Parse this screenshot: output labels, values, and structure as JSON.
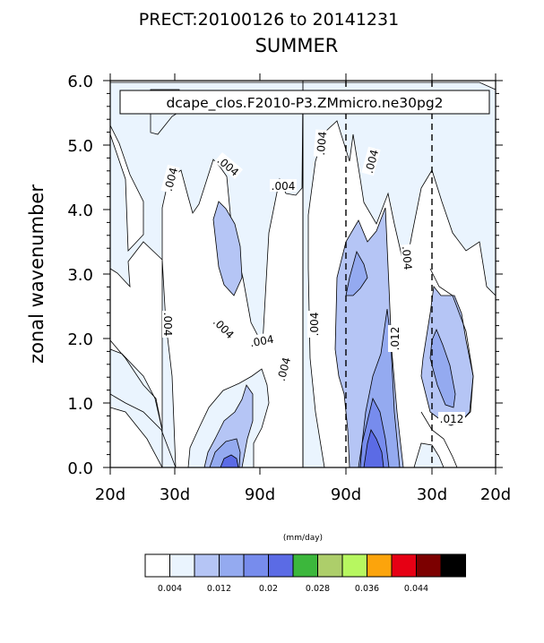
{
  "chart_data": {
    "type": "contour",
    "title": "PRECT:20100126 to 20141231",
    "subtitle": "SUMMER",
    "case_label": "dcape_clos.F2010-P3.ZMmicro.ne30pg2",
    "ylabel": "zonal wavenumber",
    "ylim": [
      0,
      6
    ],
    "y_ticks": [
      "0.0",
      "1.0",
      "2.0",
      "3.0",
      "4.0",
      "5.0",
      "6.0"
    ],
    "x_ticks": [
      "20d",
      "30d",
      "90d",
      "90d",
      "30d",
      "20d"
    ],
    "contour_labels": [
      ".004",
      ".004",
      ".004",
      ".004",
      ".004",
      ".004",
      ".004",
      ".004",
      ".004",
      ".004",
      ".004",
      ".012",
      ".012"
    ],
    "colorbar": {
      "units": "(mm/day)",
      "labels": [
        "0.004",
        "0.012",
        "0.02",
        "0.028",
        "0.036",
        "0.044"
      ],
      "colors": [
        "#ffffff",
        "#eaf4fe",
        "#b5c5f5",
        "#94aaf0",
        "#778ced",
        "#5b6be5",
        "#3cb73c",
        "#adce6a",
        "#b7f760",
        "#fca40c",
        "#e60014",
        "#7c0000",
        "#000000"
      ]
    }
  }
}
